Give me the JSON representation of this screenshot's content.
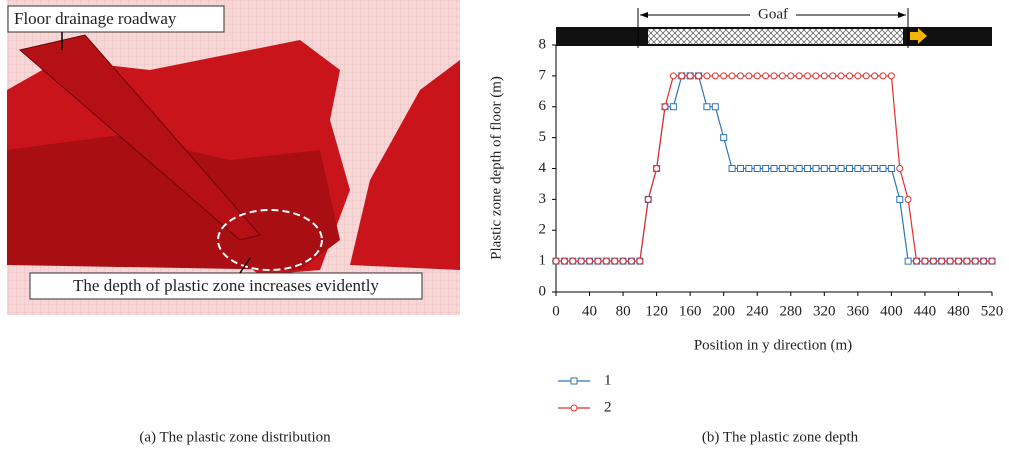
{
  "figure_a": {
    "labels": [
      "Floor drainage roadway",
      "The depth of plastic zone increases evidently"
    ],
    "caption": "(a) The plastic zone distribution"
  },
  "chart_data": {
    "type": "line",
    "caption": "(b) The plastic zone depth",
    "annotation": "Goaf",
    "x_label": "Position in y direction (m)",
    "y_label": "Plastic zone depth of floor (m)",
    "x": [
      0,
      10,
      20,
      30,
      40,
      50,
      60,
      70,
      80,
      90,
      100,
      110,
      120,
      130,
      140,
      150,
      160,
      170,
      180,
      190,
      200,
      210,
      220,
      230,
      240,
      250,
      260,
      270,
      280,
      290,
      300,
      310,
      320,
      330,
      340,
      350,
      360,
      370,
      380,
      390,
      400,
      410,
      420,
      430,
      440,
      450,
      460,
      470,
      480,
      490,
      500,
      510,
      520
    ],
    "series": [
      {
        "name": "1",
        "color": "#2e75b6",
        "marker": "square",
        "values": [
          1,
          1,
          1,
          1,
          1,
          1,
          1,
          1,
          1,
          1,
          1,
          3,
          4,
          6,
          6,
          7,
          7,
          7,
          6,
          6,
          5,
          4,
          4,
          4,
          4,
          4,
          4,
          4,
          4,
          4,
          4,
          4,
          4,
          4,
          4,
          4,
          4,
          4,
          4,
          4,
          4,
          3,
          1,
          1,
          1,
          1,
          1,
          1,
          1,
          1,
          1,
          1,
          1
        ]
      },
      {
        "name": "2",
        "color": "#e0302f",
        "marker": "circle",
        "values": [
          1,
          1,
          1,
          1,
          1,
          1,
          1,
          1,
          1,
          1,
          1,
          3,
          4,
          6,
          7,
          7,
          7,
          7,
          7,
          7,
          7,
          7,
          7,
          7,
          7,
          7,
          7,
          7,
          7,
          7,
          7,
          7,
          7,
          7,
          7,
          7,
          7,
          7,
          7,
          7,
          7,
          4,
          3,
          1,
          1,
          1,
          1,
          1,
          1,
          1,
          1,
          1,
          1
        ]
      }
    ],
    "xlim": [
      0,
      520
    ],
    "xticks": [
      0,
      40,
      80,
      120,
      160,
      200,
      240,
      280,
      320,
      360,
      400,
      440,
      480,
      520
    ],
    "ylim": [
      0,
      8
    ],
    "yticks": [
      0,
      1,
      2,
      3,
      4,
      5,
      6,
      7,
      8
    ],
    "grid": false
  }
}
